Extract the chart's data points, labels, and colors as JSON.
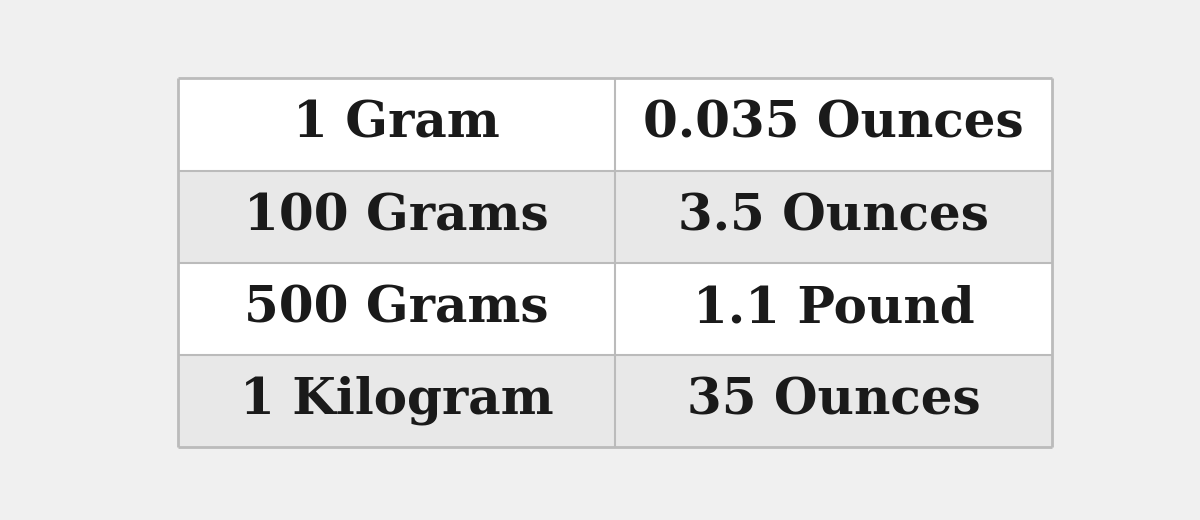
{
  "rows": [
    [
      "1 Gram",
      "0.035 Ounces"
    ],
    [
      "100 Grams",
      "3.5 Ounces"
    ],
    [
      "500 Grams",
      "1.1 Pound"
    ],
    [
      "1 Kilogram",
      "35 Ounces"
    ]
  ],
  "row_colors": [
    "#ffffff",
    "#e8e8e8",
    "#ffffff",
    "#e8e8e8"
  ],
  "text_color": "#1a1a1a",
  "border_color": "#bbbbbb",
  "font_size": 36,
  "fig_bg_color": "#f0f0f0",
  "outer_bg": "#f0f0f0"
}
